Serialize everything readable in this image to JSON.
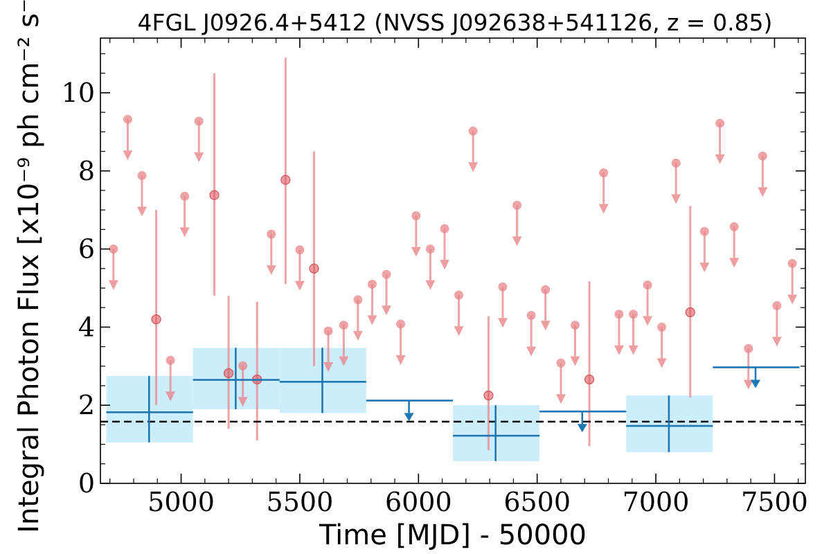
{
  "chart_data": {
    "type": "scatter",
    "title": "4FGL J0926.4+5412 (NVSS J092638+541126, z = 0.85)",
    "xlabel": "Time [MJD] - 50000",
    "ylabel": "Integral Photon Flux [x10⁻⁹ ph cm⁻² s⁻¹]",
    "xlim": [
      4660,
      7630
    ],
    "ylim": [
      0,
      11.4
    ],
    "xticks": [
      5000,
      5500,
      6000,
      6500,
      7000,
      7500
    ],
    "yticks": [
      0,
      2,
      4,
      6,
      8,
      10
    ],
    "x_tick_labels": [
      "5000",
      "5500",
      "6000",
      "6500",
      "7000",
      "7500"
    ],
    "y_tick_labels": [
      "0",
      "2",
      "4",
      "6",
      "8",
      "10"
    ],
    "grid": false,
    "colors": {
      "short_bins": "#e8868a",
      "long_bins": "#1f77b4",
      "long_bins_band": "#cceefc",
      "mean_line": "#000000"
    },
    "mean_flux": 1.58,
    "series": [
      {
        "bin_width_days": 60,
        "detections": [
          {
            "x": 4895,
            "y": 4.2,
            "ylow": 2.0,
            "yhigh": 7.0
          },
          {
            "x": 5140,
            "y": 7.38,
            "ylow": 4.8,
            "yhigh": 10.5
          },
          {
            "x": 5200,
            "y": 2.82,
            "ylow": 1.4,
            "yhigh": 4.8
          },
          {
            "x": 5320,
            "y": 2.66,
            "ylow": 1.1,
            "yhigh": 4.65
          },
          {
            "x": 5440,
            "y": 7.77,
            "ylow": 5.1,
            "yhigh": 10.9
          },
          {
            "x": 5560,
            "y": 5.5,
            "ylow": 3.0,
            "yhigh": 8.5
          },
          {
            "x": 6295,
            "y": 2.25,
            "ylow": 0.85,
            "yhigh": 4.28
          },
          {
            "x": 6720,
            "y": 2.66,
            "ylow": 0.95,
            "yhigh": 5.17
          },
          {
            "x": 7145,
            "y": 4.38,
            "ylow": 2.2,
            "yhigh": 7.1
          }
        ],
        "upper_limits": [
          {
            "x": 4715,
            "y": 6.0
          },
          {
            "x": 4775,
            "y": 9.32
          },
          {
            "x": 4835,
            "y": 7.88
          },
          {
            "x": 4955,
            "y": 3.15
          },
          {
            "x": 5015,
            "y": 7.35
          },
          {
            "x": 5075,
            "y": 9.27
          },
          {
            "x": 5260,
            "y": 3.01
          },
          {
            "x": 5380,
            "y": 6.38
          },
          {
            "x": 5500,
            "y": 5.98
          },
          {
            "x": 5620,
            "y": 3.9
          },
          {
            "x": 5685,
            "y": 4.05
          },
          {
            "x": 5745,
            "y": 4.7
          },
          {
            "x": 5805,
            "y": 5.1
          },
          {
            "x": 5865,
            "y": 5.35
          },
          {
            "x": 5925,
            "y": 4.08
          },
          {
            "x": 5990,
            "y": 6.85
          },
          {
            "x": 6050,
            "y": 6.0
          },
          {
            "x": 6110,
            "y": 6.52
          },
          {
            "x": 6170,
            "y": 4.82
          },
          {
            "x": 6230,
            "y": 9.02
          },
          {
            "x": 6355,
            "y": 5.03
          },
          {
            "x": 6415,
            "y": 7.12
          },
          {
            "x": 6475,
            "y": 4.3
          },
          {
            "x": 6535,
            "y": 4.96
          },
          {
            "x": 6600,
            "y": 3.08
          },
          {
            "x": 6660,
            "y": 4.05
          },
          {
            "x": 6780,
            "y": 7.95
          },
          {
            "x": 6845,
            "y": 4.33
          },
          {
            "x": 6905,
            "y": 4.33
          },
          {
            "x": 6965,
            "y": 5.08
          },
          {
            "x": 7025,
            "y": 4.0
          },
          {
            "x": 7085,
            "y": 8.2
          },
          {
            "x": 7205,
            "y": 6.45
          },
          {
            "x": 7270,
            "y": 9.22
          },
          {
            "x": 7330,
            "y": 6.57
          },
          {
            "x": 7390,
            "y": 3.45
          },
          {
            "x": 7450,
            "y": 8.38
          },
          {
            "x": 7510,
            "y": 4.55
          },
          {
            "x": 7575,
            "y": 5.63
          }
        ]
      },
      {
        "bin_width_days": 365,
        "detections": [
          {
            "x": 4865,
            "x0": 4685,
            "x1": 5050,
            "y": 1.82,
            "ylow": 1.05,
            "yhigh": 2.75
          },
          {
            "x": 5230,
            "x0": 5050,
            "x1": 5415,
            "y": 2.65,
            "ylow": 1.9,
            "yhigh": 3.47
          },
          {
            "x": 5595,
            "x0": 5415,
            "x1": 5780,
            "y": 2.6,
            "ylow": 1.8,
            "yhigh": 3.47
          },
          {
            "x": 6325,
            "x0": 6145,
            "x1": 6510,
            "y": 1.22,
            "ylow": 0.57,
            "yhigh": 2.0
          },
          {
            "x": 7055,
            "x0": 6875,
            "x1": 7240,
            "y": 1.47,
            "ylow": 0.8,
            "yhigh": 2.25
          }
        ],
        "upper_limits": [
          {
            "x": 5960,
            "x0": 5780,
            "x1": 6145,
            "y": 2.12
          },
          {
            "x": 6690,
            "x0": 6510,
            "x1": 6875,
            "y": 1.84
          },
          {
            "x": 7420,
            "x0": 7240,
            "x1": 7605,
            "y": 2.97
          }
        ]
      }
    ]
  }
}
